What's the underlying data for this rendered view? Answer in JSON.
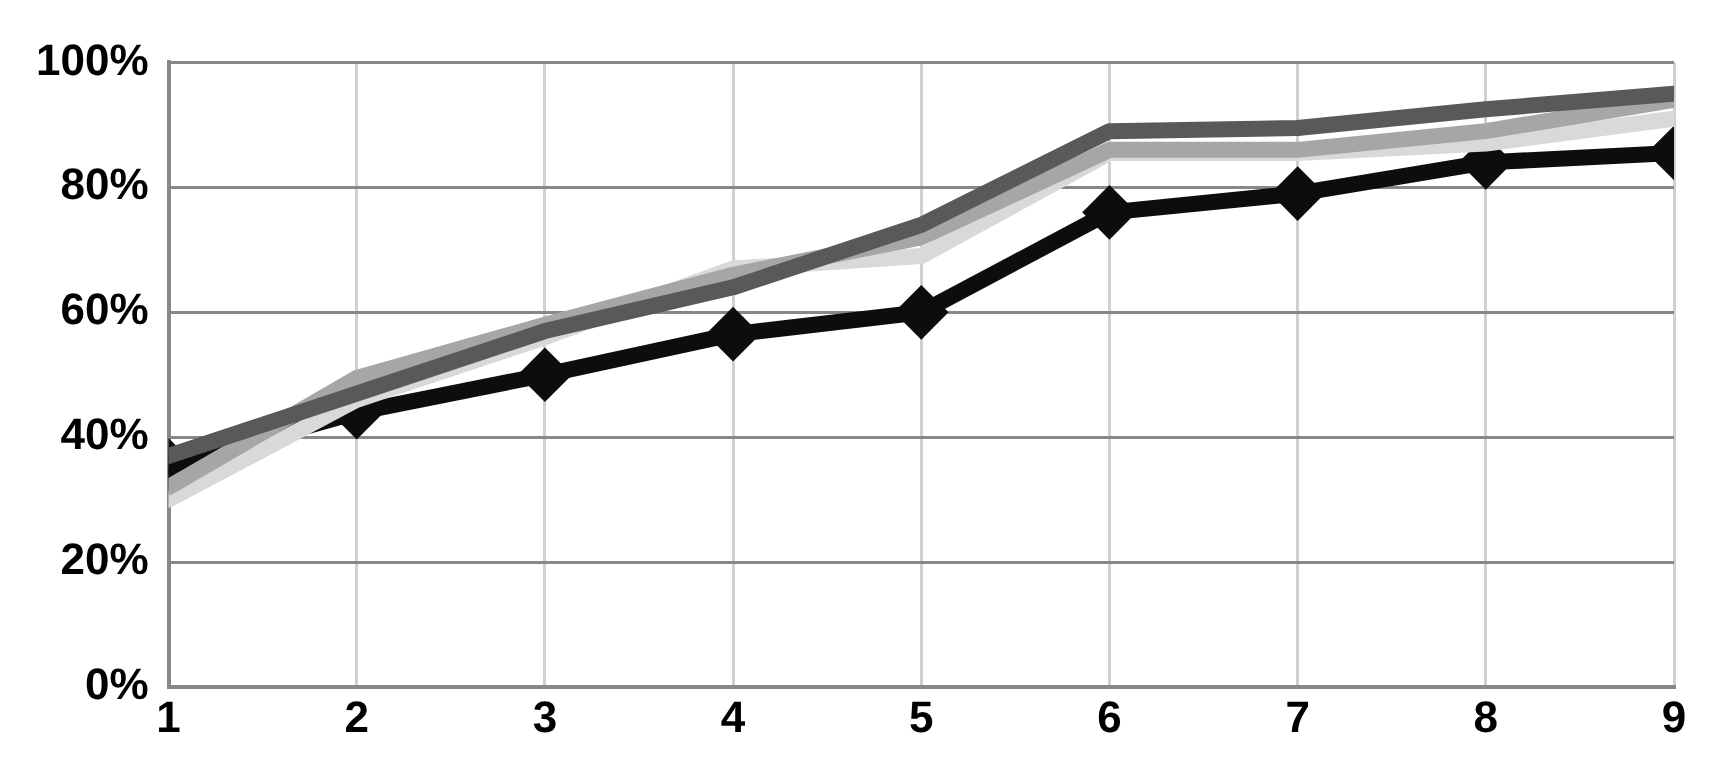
{
  "chart_data": {
    "type": "line",
    "x": [
      1,
      2,
      3,
      4,
      5,
      6,
      7,
      8,
      9
    ],
    "xlim": [
      1,
      9
    ],
    "xticks": [
      1,
      2,
      3,
      4,
      5,
      6,
      7,
      8,
      9
    ],
    "ylim": [
      0,
      100
    ],
    "yticks": [
      {
        "value": 0,
        "label": "0%"
      },
      {
        "value": 20,
        "label": "20%"
      },
      {
        "value": 40,
        "label": "40%"
      },
      {
        "value": 60,
        "label": "60%"
      },
      {
        "value": 80,
        "label": "80%"
      },
      {
        "value": 100,
        "label": "100%"
      }
    ],
    "grid": true,
    "legend": false,
    "line_style": "solid",
    "series": [
      {
        "color": "#595959",
        "marker": "none",
        "values": [
          37,
          47,
          57,
          64,
          74,
          89,
          89.5,
          92.5,
          95
        ]
      },
      {
        "color": "#a6a6a6",
        "marker": "none",
        "values": [
          32,
          49.5,
          58,
          66,
          72,
          86,
          86,
          89,
          94
        ]
      },
      {
        "color": "#d9d9d9",
        "marker": "none",
        "values": [
          30,
          46,
          56,
          67,
          69,
          85.5,
          85.5,
          87,
          91
        ]
      },
      {
        "color": "#0d0d0d",
        "marker": "diamond",
        "values": [
          35.5,
          44,
          50,
          56.5,
          60,
          76,
          79,
          84,
          85.5
        ]
      }
    ]
  }
}
